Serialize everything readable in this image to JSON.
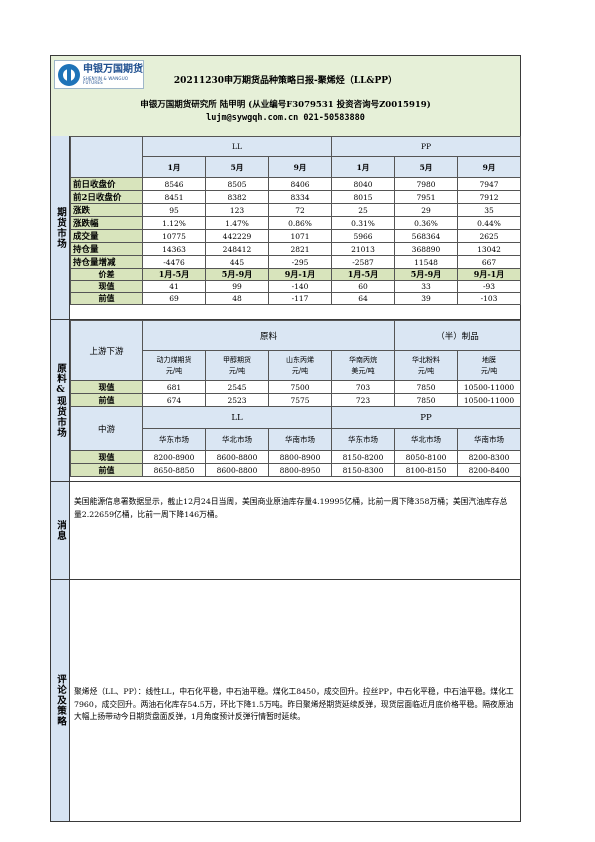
{
  "brand": {
    "logo_text": "申银万国期货",
    "logo_sub": "SHENYIN & WANGUO FUTURES"
  },
  "header": {
    "title": "20211230申万期货品种策略日报-聚烯烃（LL&PP）",
    "institute": "申银万国期货研究所  陆甲明  (从业编号F3079531  投资咨询号Z0015919)",
    "contact": "lujm@sywgqh.com.cn  021-50583880"
  },
  "futures": {
    "side_label": "期货市场",
    "group_ll": "LL",
    "group_pp": "PP",
    "months": [
      "1月",
      "5月",
      "9月",
      "1月",
      "5月",
      "9月"
    ],
    "rows": [
      {
        "label": "前日收盘价",
        "values": [
          "8546",
          "8505",
          "8406",
          "8040",
          "7980",
          "7947"
        ]
      },
      {
        "label": "前2日收盘价",
        "values": [
          "8451",
          "8382",
          "8334",
          "8015",
          "7951",
          "7912"
        ]
      },
      {
        "label": "涨跌",
        "values": [
          "95",
          "123",
          "72",
          "25",
          "29",
          "35"
        ]
      },
      {
        "label": "涨跌幅",
        "values": [
          "1.12%",
          "1.47%",
          "0.86%",
          "0.31%",
          "0.36%",
          "0.44%"
        ]
      },
      {
        "label": "成交量",
        "values": [
          "10775",
          "442229",
          "1071",
          "5966",
          "568364",
          "2625"
        ]
      },
      {
        "label": "持仓量",
        "values": [
          "14363",
          "248412",
          "2821",
          "21013",
          "368890",
          "13042"
        ]
      },
      {
        "label": "持仓量增减",
        "values": [
          "-4476",
          "445",
          "-295",
          "-2587",
          "11548",
          "667"
        ]
      }
    ],
    "spread_label": "价差",
    "spread_headers": [
      "1月-5月",
      "5月-9月",
      "9月-1月",
      "1月-5月",
      "5月-9月",
      "9月-1月"
    ],
    "spread_rows": [
      {
        "label": "现值",
        "values": [
          "41",
          "99",
          "-140",
          "60",
          "33",
          "-93"
        ]
      },
      {
        "label": "前值",
        "values": [
          "69",
          "48",
          "-117",
          "64",
          "39",
          "-103"
        ]
      }
    ]
  },
  "spot": {
    "side_label": "原料&现货市场",
    "upstream_label": "上游下游",
    "raw_label": "原料",
    "product_label": "（半）制品",
    "upstream_cols": [
      "动力煤期货\n元/吨",
      "甲醇期货\n元/吨",
      "山东丙烯\n元/吨",
      "华南丙烷\n美元/吨",
      "华北粉料\n元/吨",
      "地膜\n元/吨"
    ],
    "upstream_rows": [
      {
        "label": "现值",
        "values": [
          "681",
          "2545",
          "7500",
          "703",
          "7850",
          "10500-11000"
        ]
      },
      {
        "label": "前值",
        "values": [
          "674",
          "2523",
          "7575",
          "723",
          "7850",
          "10500-11000"
        ]
      }
    ],
    "mid_label": "中游",
    "mid_group_ll": "LL",
    "mid_group_pp": "PP",
    "mid_cols": [
      "华东市场",
      "华北市场",
      "华南市场",
      "华东市场",
      "华北市场",
      "华南市场"
    ],
    "mid_rows": [
      {
        "label": "现值",
        "values": [
          "8200-8900",
          "8600-8800",
          "8800-8900",
          "8150-8200",
          "8050-8100",
          "8200-8300"
        ]
      },
      {
        "label": "前值",
        "values": [
          "8650-8850",
          "8600-8800",
          "8800-8950",
          "8150-8300",
          "8100-8150",
          "8200-8400"
        ]
      }
    ]
  },
  "news": {
    "side_label": "消息",
    "text": "美国能源信息署数据显示，截止12月24日当周，美国商业原油库存量4.19995亿桶，比前一周下降358万桶；美国汽油库存总量2.22659亿桶，比前一周下降146万桶。"
  },
  "comment": {
    "side_label": "评论及策略",
    "text": "聚烯烃（LL、PP）：线性LL，中石化平稳，中石油平稳。煤化工8450，成交回升。拉丝PP，中石化平稳，中石油平稳。煤化工7960，成交回升。两油石化库存54.5万，环比下降1.5万吨。昨日聚烯烃期货延续反弹，现货层面临近月底价格平稳。隔夜原油大幅上扬带动今日期货盘面反弹，1月角度预计反弹行情暂时延续。"
  },
  "colors": {
    "header_bg": "#e6f0d8",
    "side_bg": "#d7e4f2",
    "label_green": "#d8e4bc",
    "header_blue": "#dae6f3",
    "brand_blue": "#1e73b8"
  }
}
